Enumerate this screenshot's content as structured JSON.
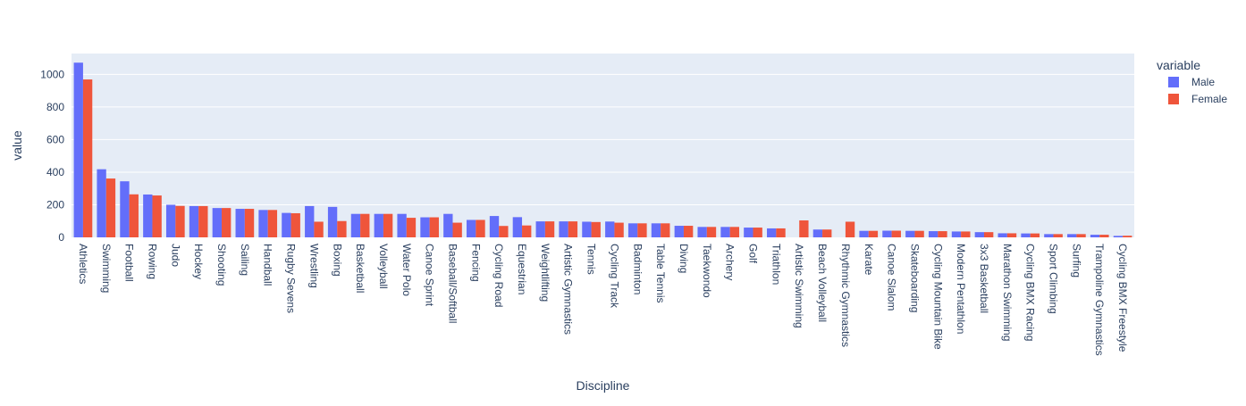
{
  "chart_data": {
    "type": "bar",
    "barmode": "group",
    "title": "",
    "xlabel": "Discipline",
    "ylabel": "value",
    "ylim": [
      0,
      1128
    ],
    "yticks": [
      0,
      200,
      400,
      600,
      800,
      1000
    ],
    "grid": true,
    "legend": {
      "title": "variable",
      "placement": "top-right"
    },
    "categories": [
      "Athletics",
      "Swimming",
      "Football",
      "Rowing",
      "Judo",
      "Hockey",
      "Shooting",
      "Sailing",
      "Handball",
      "Rugby Sevens",
      "Wrestling",
      "Boxing",
      "Basketball",
      "Volleyball",
      "Water Polo",
      "Canoe Sprint",
      "Baseball/Softball",
      "Fencing",
      "Cycling Road",
      "Equestrian",
      "Weightlifting",
      "Artistic Gymnastics",
      "Tennis",
      "Cycling Track",
      "Badminton",
      "Table Tennis",
      "Diving",
      "Taekwondo",
      "Archery",
      "Golf",
      "Triathlon",
      "Artistic Swimming",
      "Beach Volleyball",
      "Rhythmic Gymnastics",
      "Karate",
      "Canoe Slalom",
      "Skateboarding",
      "Cycling Mountain Bike",
      "Modern Pentathlon",
      "3x3 Basketball",
      "Marathon Swimming",
      "Cycling BMX Racing",
      "Sport Climbing",
      "Surfing",
      "Trampoline Gymnastics",
      "Cycling BMX Freestyle"
    ],
    "series": [
      {
        "name": "Male",
        "color": "#636efa",
        "values": [
          1072,
          418,
          344,
          263,
          200,
          192,
          180,
          175,
          168,
          150,
          192,
          187,
          144,
          144,
          144,
          123,
          144,
          107,
          131,
          124,
          98,
          98,
          96,
          97,
          86,
          86,
          71,
          64,
          64,
          60,
          55,
          0,
          48,
          0,
          40,
          41,
          40,
          38,
          36,
          32,
          25,
          24,
          20,
          20,
          16,
          9
        ]
      },
      {
        "name": "Female",
        "color": "#EF553B",
        "values": [
          969,
          361,
          264,
          257,
          193,
          192,
          180,
          175,
          168,
          148,
          96,
          100,
          144,
          144,
          120,
          123,
          90,
          107,
          70,
          73,
          98,
          98,
          94,
          90,
          86,
          86,
          71,
          64,
          64,
          60,
          55,
          104,
          48,
          96,
          40,
          41,
          40,
          38,
          36,
          32,
          25,
          24,
          20,
          20,
          16,
          10
        ]
      }
    ]
  }
}
